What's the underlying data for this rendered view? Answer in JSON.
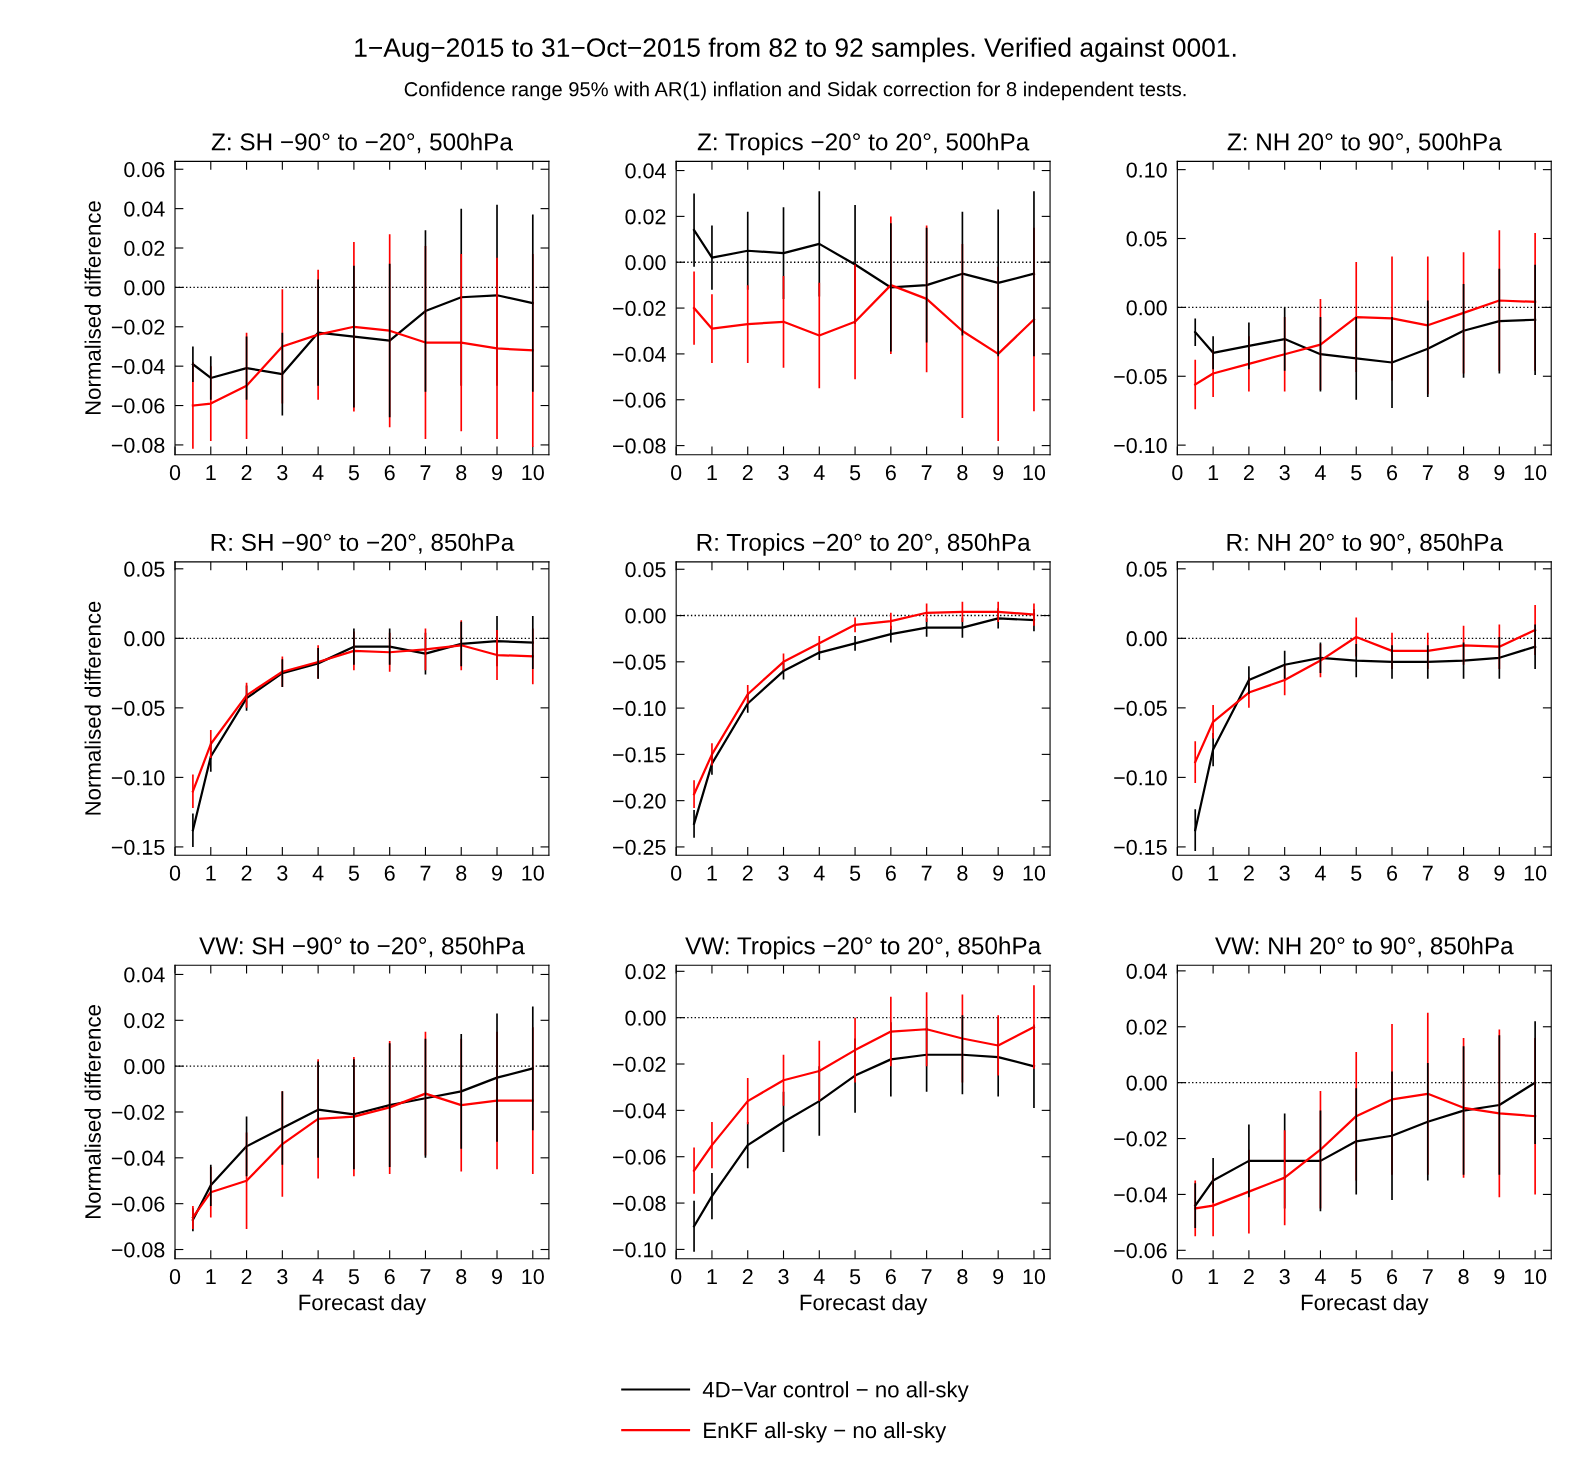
{
  "chart_data": [
    {
      "type": "other",
      "title": "1−Aug−2015 to 31−Oct−2015 from 82 to 92 samples. Verified against 0001.",
      "subtitle": "Confidence range 95% with AR(1) inflation and Sidak correction for 8 independent tests."
    },
    {
      "type": "line",
      "title": "Z: SH −90° to −20°, 500hPa",
      "ylabel": "Normalised difference",
      "x": [
        0.5,
        1,
        2,
        3,
        4,
        5,
        6,
        7,
        8,
        9,
        10
      ],
      "xlim": [
        0,
        10.45
      ],
      "xticks": [
        0,
        1,
        2,
        3,
        4,
        5,
        6,
        7,
        8,
        9,
        10
      ],
      "ylim": [
        -0.085,
        0.064
      ],
      "yticks": [
        {
          "value": -0.08,
          "label": "−0.08"
        },
        {
          "value": -0.06,
          "label": "−0.06"
        },
        {
          "value": -0.04,
          "label": "−0.04"
        },
        {
          "value": -0.02,
          "label": "−0.02"
        },
        {
          "value": 0,
          "label": "0.00"
        },
        {
          "value": 0.02,
          "label": "0.02"
        },
        {
          "value": 0.04,
          "label": "0.04"
        },
        {
          "value": 0.06,
          "label": "0.06"
        }
      ],
      "marker": "none",
      "line_style": "solid",
      "ref_lines": [
        {
          "axis": "y",
          "value": 0,
          "color": "#000000",
          "line_style": "dotted"
        }
      ],
      "series": [
        {
          "color": "#000000",
          "values": [
            -0.039,
            -0.046,
            -0.041,
            -0.044,
            -0.023,
            -0.025,
            -0.027,
            -0.012,
            -0.005,
            -0.004,
            -0.008
          ],
          "errors": [
            0.009,
            0.011,
            0.016,
            0.021,
            0.027,
            0.036,
            0.039,
            0.041,
            0.045,
            0.046,
            0.045
          ]
        },
        {
          "color": "#ff0000",
          "values": [
            -0.06,
            -0.059,
            -0.05,
            -0.03,
            -0.024,
            -0.02,
            -0.022,
            -0.028,
            -0.028,
            -0.031,
            -0.032
          ],
          "errors": [
            0.022,
            0.019,
            0.027,
            0.029,
            0.033,
            0.043,
            0.049,
            0.049,
            0.045,
            0.046,
            0.049
          ]
        }
      ]
    },
    {
      "type": "line",
      "title": "Z: Tropics −20° to 20°, 500hPa",
      "x": [
        0.5,
        1,
        2,
        3,
        4,
        5,
        6,
        7,
        8,
        9,
        10
      ],
      "xlim": [
        0,
        10.45
      ],
      "xticks": [
        0,
        1,
        2,
        3,
        4,
        5,
        6,
        7,
        8,
        9,
        10
      ],
      "ylim": [
        -0.084,
        0.044
      ],
      "yticks": [
        {
          "value": -0.08,
          "label": "−0.08"
        },
        {
          "value": -0.06,
          "label": "−0.06"
        },
        {
          "value": -0.04,
          "label": "−0.04"
        },
        {
          "value": -0.02,
          "label": "−0.02"
        },
        {
          "value": 0,
          "label": "0.00"
        },
        {
          "value": 0.02,
          "label": "0.02"
        },
        {
          "value": 0.04,
          "label": "0.04"
        }
      ],
      "marker": "none",
      "line_style": "solid",
      "ref_lines": [
        {
          "axis": "y",
          "value": 0,
          "color": "#000000",
          "line_style": "dotted"
        }
      ],
      "series": [
        {
          "color": "#000000",
          "values": [
            0.014,
            0.002,
            0.005,
            0.004,
            0.008,
            -0.001,
            -0.011,
            -0.01,
            -0.005,
            -0.009,
            -0.005
          ],
          "errors": [
            0.016,
            0.014,
            0.017,
            0.02,
            0.023,
            0.026,
            0.028,
            0.025,
            0.027,
            0.032,
            0.036
          ]
        },
        {
          "color": "#ff0000",
          "values": [
            -0.02,
            -0.029,
            -0.027,
            -0.026,
            -0.032,
            -0.026,
            -0.01,
            -0.016,
            -0.03,
            -0.04,
            -0.025
          ],
          "errors": [
            0.016,
            0.015,
            0.017,
            0.02,
            0.023,
            0.025,
            0.03,
            0.032,
            0.038,
            0.038,
            0.04
          ]
        }
      ]
    },
    {
      "type": "line",
      "title": "Z: NH 20° to 90°, 500hPa",
      "x": [
        0.5,
        1,
        2,
        3,
        4,
        5,
        6,
        7,
        8,
        9,
        10
      ],
      "xlim": [
        0,
        10.45
      ],
      "xticks": [
        0,
        1,
        2,
        3,
        4,
        5,
        6,
        7,
        8,
        9,
        10
      ],
      "ylim": [
        -0.107,
        0.106
      ],
      "yticks": [
        {
          "value": -0.1,
          "label": "−0.10"
        },
        {
          "value": -0.05,
          "label": "−0.05"
        },
        {
          "value": 0,
          "label": "0.00"
        },
        {
          "value": 0.05,
          "label": "0.05"
        },
        {
          "value": 0.1,
          "label": "0.10"
        }
      ],
      "marker": "none",
      "line_style": "solid",
      "ref_lines": [
        {
          "axis": "y",
          "value": 0,
          "color": "#000000",
          "line_style": "dotted"
        }
      ],
      "series": [
        {
          "color": "#000000",
          "values": [
            -0.018,
            -0.033,
            -0.028,
            -0.023,
            -0.034,
            -0.037,
            -0.04,
            -0.03,
            -0.017,
            -0.01,
            -0.009
          ],
          "errors": [
            0.01,
            0.012,
            0.017,
            0.023,
            0.027,
            0.03,
            0.033,
            0.035,
            0.034,
            0.038,
            0.04
          ]
        },
        {
          "color": "#ff0000",
          "values": [
            -0.056,
            -0.048,
            -0.041,
            -0.034,
            -0.027,
            -0.007,
            -0.008,
            -0.013,
            -0.004,
            0.005,
            0.004
          ],
          "errors": [
            0.018,
            0.017,
            0.02,
            0.027,
            0.033,
            0.04,
            0.045,
            0.05,
            0.044,
            0.051,
            0.05
          ]
        }
      ]
    },
    {
      "type": "line",
      "title": "R: SH −90° to −20°, 850hPa",
      "ylabel": "Normalised difference",
      "x": [
        0.5,
        1,
        2,
        3,
        4,
        5,
        6,
        7,
        8,
        9,
        10
      ],
      "xlim": [
        0,
        10.45
      ],
      "xticks": [
        0,
        1,
        2,
        3,
        4,
        5,
        6,
        7,
        8,
        9,
        10
      ],
      "ylim": [
        -0.156,
        0.055
      ],
      "yticks": [
        {
          "value": -0.15,
          "label": "−0.15"
        },
        {
          "value": -0.1,
          "label": "−0.10"
        },
        {
          "value": -0.05,
          "label": "−0.05"
        },
        {
          "value": 0,
          "label": "0.00"
        },
        {
          "value": 0.05,
          "label": "0.05"
        }
      ],
      "marker": "none",
      "line_style": "solid",
      "ref_lines": [
        {
          "axis": "y",
          "value": 0,
          "color": "#000000",
          "line_style": "dotted"
        }
      ],
      "series": [
        {
          "color": "#000000",
          "values": [
            -0.138,
            -0.085,
            -0.043,
            -0.025,
            -0.018,
            -0.006,
            -0.006,
            -0.011,
            -0.004,
            -0.002,
            -0.003
          ],
          "errors": [
            0.012,
            0.011,
            0.009,
            0.01,
            0.011,
            0.013,
            0.013,
            0.015,
            0.016,
            0.018,
            0.019
          ]
        },
        {
          "color": "#ff0000",
          "values": [
            -0.11,
            -0.076,
            -0.041,
            -0.024,
            -0.017,
            -0.009,
            -0.01,
            -0.008,
            -0.005,
            -0.012,
            -0.013
          ],
          "errors": [
            0.012,
            0.01,
            0.009,
            0.011,
            0.012,
            0.014,
            0.014,
            0.015,
            0.018,
            0.018,
            0.02
          ]
        }
      ]
    },
    {
      "type": "line",
      "title": "R: Tropics −20° to 20°, 850hPa",
      "x": [
        0.5,
        1,
        2,
        3,
        4,
        5,
        6,
        7,
        8,
        9,
        10
      ],
      "xlim": [
        0,
        10.45
      ],
      "xticks": [
        0,
        1,
        2,
        3,
        4,
        5,
        6,
        7,
        8,
        9,
        10
      ],
      "ylim": [
        -0.259,
        0.058
      ],
      "yticks": [
        {
          "value": -0.25,
          "label": "−0.25"
        },
        {
          "value": -0.2,
          "label": "−0.20"
        },
        {
          "value": -0.15,
          "label": "−0.15"
        },
        {
          "value": -0.1,
          "label": "−0.10"
        },
        {
          "value": -0.05,
          "label": "−0.05"
        },
        {
          "value": 0,
          "label": "0.00"
        },
        {
          "value": 0.05,
          "label": "0.05"
        }
      ],
      "marker": "none",
      "line_style": "solid",
      "ref_lines": [
        {
          "axis": "y",
          "value": 0,
          "color": "#000000",
          "line_style": "dotted"
        }
      ],
      "series": [
        {
          "color": "#000000",
          "values": [
            -0.225,
            -0.16,
            -0.095,
            -0.06,
            -0.04,
            -0.03,
            -0.02,
            -0.013,
            -0.013,
            -0.003,
            -0.005
          ],
          "errors": [
            0.015,
            0.012,
            0.01,
            0.009,
            0.008,
            0.008,
            0.009,
            0.01,
            0.011,
            0.011,
            0.012
          ]
        },
        {
          "color": "#ff0000",
          "values": [
            -0.193,
            -0.15,
            -0.085,
            -0.05,
            -0.03,
            -0.01,
            -0.006,
            0.003,
            0.004,
            0.004,
            0.001
          ],
          "errors": [
            0.015,
            0.012,
            0.01,
            0.009,
            0.008,
            0.008,
            0.009,
            0.01,
            0.011,
            0.011,
            0.012
          ]
        }
      ]
    },
    {
      "type": "line",
      "title": "R: NH 20° to 90°, 850hPa",
      "x": [
        0.5,
        1,
        2,
        3,
        4,
        5,
        6,
        7,
        8,
        9,
        10
      ],
      "xlim": [
        0,
        10.45
      ],
      "xticks": [
        0,
        1,
        2,
        3,
        4,
        5,
        6,
        7,
        8,
        9,
        10
      ],
      "ylim": [
        -0.156,
        0.055
      ],
      "yticks": [
        {
          "value": -0.15,
          "label": "−0.15"
        },
        {
          "value": -0.1,
          "label": "−0.10"
        },
        {
          "value": -0.05,
          "label": "−0.05"
        },
        {
          "value": 0,
          "label": "0.00"
        },
        {
          "value": 0.05,
          "label": "0.05"
        }
      ],
      "marker": "none",
      "line_style": "solid",
      "ref_lines": [
        {
          "axis": "y",
          "value": 0,
          "color": "#000000",
          "line_style": "dotted"
        }
      ],
      "series": [
        {
          "color": "#000000",
          "values": [
            -0.138,
            -0.08,
            -0.03,
            -0.019,
            -0.014,
            -0.016,
            -0.017,
            -0.017,
            -0.016,
            -0.014,
            -0.006
          ],
          "errors": [
            0.015,
            0.012,
            0.01,
            0.01,
            0.011,
            0.012,
            0.012,
            0.012,
            0.013,
            0.015,
            0.016
          ]
        },
        {
          "color": "#ff0000",
          "values": [
            -0.089,
            -0.06,
            -0.039,
            -0.03,
            -0.016,
            0.001,
            -0.009,
            -0.009,
            -0.005,
            -0.006,
            0.006
          ],
          "errors": [
            0.015,
            0.012,
            0.011,
            0.011,
            0.012,
            0.014,
            0.013,
            0.013,
            0.014,
            0.016,
            0.018
          ]
        }
      ]
    },
    {
      "type": "line",
      "title": "VW: SH −90° to −20°, 850hPa",
      "ylabel": "Normalised difference",
      "xlabel": "Forecast day",
      "x": [
        0.5,
        1,
        2,
        3,
        4,
        5,
        6,
        7,
        8,
        9,
        10
      ],
      "xlim": [
        0,
        10.45
      ],
      "xticks": [
        0,
        1,
        2,
        3,
        4,
        5,
        6,
        7,
        8,
        9,
        10
      ],
      "ylim": [
        -0.084,
        0.044
      ],
      "yticks": [
        {
          "value": -0.08,
          "label": "−0.08"
        },
        {
          "value": -0.06,
          "label": "−0.06"
        },
        {
          "value": -0.04,
          "label": "−0.04"
        },
        {
          "value": -0.02,
          "label": "−0.02"
        },
        {
          "value": 0,
          "label": "0.00"
        },
        {
          "value": 0.02,
          "label": "0.02"
        },
        {
          "value": 0.04,
          "label": "0.04"
        }
      ],
      "marker": "none",
      "line_style": "solid",
      "ref_lines": [
        {
          "axis": "y",
          "value": 0,
          "color": "#000000",
          "line_style": "dotted"
        }
      ],
      "series": [
        {
          "color": "#000000",
          "values": [
            -0.067,
            -0.052,
            -0.035,
            -0.027,
            -0.019,
            -0.021,
            -0.017,
            -0.014,
            -0.011,
            -0.005,
            -0.001
          ],
          "errors": [
            0.005,
            0.009,
            0.013,
            0.016,
            0.021,
            0.024,
            0.027,
            0.026,
            0.025,
            0.028,
            0.027
          ]
        },
        {
          "color": "#ff0000",
          "values": [
            -0.066,
            -0.055,
            -0.05,
            -0.034,
            -0.023,
            -0.022,
            -0.018,
            -0.012,
            -0.017,
            -0.015,
            -0.015
          ],
          "errors": [
            0.005,
            0.011,
            0.021,
            0.023,
            0.026,
            0.026,
            0.029,
            0.027,
            0.029,
            0.03,
            0.032
          ]
        }
      ]
    },
    {
      "type": "line",
      "title": "VW: Tropics −20° to 20°, 850hPa",
      "xlabel": "Forecast day",
      "legend": "bottom",
      "x": [
        0.5,
        1,
        2,
        3,
        4,
        5,
        6,
        7,
        8,
        9,
        10
      ],
      "xlim": [
        0,
        10.45
      ],
      "xticks": [
        0,
        1,
        2,
        3,
        4,
        5,
        6,
        7,
        8,
        9,
        10
      ],
      "ylim": [
        -0.104,
        0.0226
      ],
      "yticks": [
        {
          "value": -0.1,
          "label": "−0.10"
        },
        {
          "value": -0.08,
          "label": "−0.08"
        },
        {
          "value": -0.06,
          "label": "−0.06"
        },
        {
          "value": -0.04,
          "label": "−0.04"
        },
        {
          "value": -0.02,
          "label": "−0.02"
        },
        {
          "value": 0,
          "label": "0.00"
        },
        {
          "value": 0.02,
          "label": "0.02"
        }
      ],
      "marker": "none",
      "line_style": "solid",
      "ref_lines": [
        {
          "axis": "y",
          "value": 0,
          "color": "#000000",
          "line_style": "dotted"
        }
      ],
      "series": [
        {
          "name": "4D−Var control − no all-sky",
          "color": "#000000",
          "values": [
            -0.09,
            -0.077,
            -0.055,
            -0.045,
            -0.036,
            -0.025,
            -0.018,
            -0.016,
            -0.016,
            -0.017,
            -0.021
          ],
          "errors": [
            0.011,
            0.01,
            0.01,
            0.013,
            0.015,
            0.016,
            0.016,
            0.016,
            0.017,
            0.017,
            0.018
          ]
        },
        {
          "name": "EnKF all-sky − no all-sky",
          "color": "#ff0000",
          "values": [
            -0.066,
            -0.055,
            -0.036,
            -0.027,
            -0.023,
            -0.014,
            -0.006,
            -0.005,
            -0.009,
            -0.012,
            -0.004
          ],
          "errors": [
            0.01,
            0.01,
            0.01,
            0.011,
            0.013,
            0.014,
            0.015,
            0.016,
            0.019,
            0.013,
            0.018
          ]
        }
      ]
    },
    {
      "type": "line",
      "title": "VW: NH 20° to 90°, 850hPa",
      "xlabel": "Forecast day",
      "x": [
        0.5,
        1,
        2,
        3,
        4,
        5,
        6,
        7,
        8,
        9,
        10
      ],
      "xlim": [
        0,
        10.45
      ],
      "xticks": [
        0,
        1,
        2,
        3,
        4,
        5,
        6,
        7,
        8,
        9,
        10
      ],
      "ylim": [
        -0.063,
        0.042
      ],
      "yticks": [
        {
          "value": -0.06,
          "label": "−0.06"
        },
        {
          "value": -0.04,
          "label": "−0.04"
        },
        {
          "value": -0.02,
          "label": "−0.02"
        },
        {
          "value": 0,
          "label": "0.00"
        },
        {
          "value": 0.02,
          "label": "0.02"
        },
        {
          "value": 0.04,
          "label": "0.04"
        }
      ],
      "marker": "none",
      "line_style": "solid",
      "ref_lines": [
        {
          "axis": "y",
          "value": 0,
          "color": "#000000",
          "line_style": "dotted"
        }
      ],
      "series": [
        {
          "color": "#000000",
          "values": [
            -0.044,
            -0.035,
            -0.028,
            -0.028,
            -0.028,
            -0.021,
            -0.019,
            -0.014,
            -0.01,
            -0.008,
            0.0
          ],
          "errors": [
            0.008,
            0.008,
            0.013,
            0.017,
            0.018,
            0.019,
            0.023,
            0.021,
            0.023,
            0.025,
            0.022
          ]
        },
        {
          "color": "#ff0000",
          "values": [
            -0.045,
            -0.044,
            -0.039,
            -0.034,
            -0.024,
            -0.012,
            -0.006,
            -0.004,
            -0.009,
            -0.011,
            -0.012
          ],
          "errors": [
            0.01,
            0.011,
            0.015,
            0.017,
            0.021,
            0.023,
            0.027,
            0.029,
            0.025,
            0.03,
            0.028
          ]
        }
      ]
    }
  ]
}
